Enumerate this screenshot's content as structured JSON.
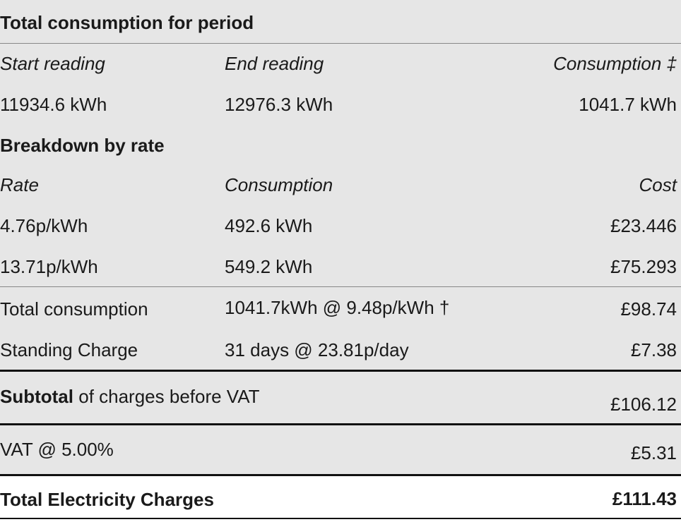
{
  "title": "Total consumption for period",
  "readings": {
    "headers": [
      "Start reading",
      "End reading",
      "Consumption ‡"
    ],
    "values": [
      "11934.6 kWh",
      "12976.3 kWh",
      "1041.7 kWh"
    ]
  },
  "breakdown": {
    "title": "Breakdown by rate",
    "headers": [
      "Rate",
      "Consumption",
      "Cost"
    ],
    "rows": [
      [
        "4.76p/kWh",
        "492.6 kWh",
        "£23.446"
      ],
      [
        "13.71p/kWh",
        "549.2 kWh",
        "£75.293"
      ]
    ]
  },
  "charges": [
    [
      "Total consumption",
      "1041.7kWh @ 9.48p/kWh †",
      "£98.74"
    ],
    [
      "Standing Charge",
      "31 days @ 23.81p/day",
      "£7.38"
    ]
  ],
  "subtotal": {
    "label_bold": "Subtotal",
    "label": "of charges before VAT",
    "value": "£106.12"
  },
  "vat": {
    "label": "VAT @ 5.00%",
    "value": "£5.31"
  },
  "total": {
    "label": "Total Electricity Charges",
    "value": "£111.43"
  }
}
